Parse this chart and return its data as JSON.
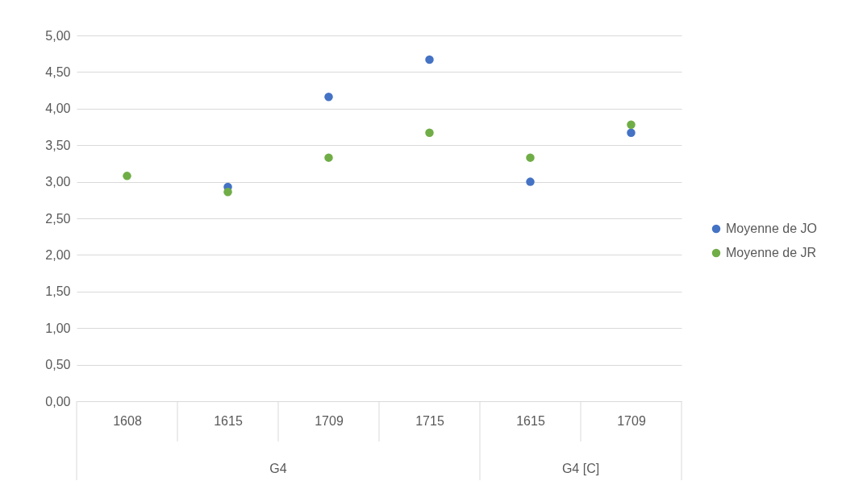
{
  "chart_data": {
    "type": "scatter",
    "categories": [
      "1608",
      "1615",
      "1709",
      "1715",
      "1615",
      "1709"
    ],
    "annotations": [
      "G4",
      "G4 [C]"
    ],
    "series": [
      {
        "name": "Moyenne de JO",
        "color": "#4472c4",
        "values": [
          null,
          2.93,
          4.16,
          4.67,
          3.0,
          3.67
        ]
      },
      {
        "name": "Moyenne de JR",
        "color": "#70ad47",
        "values": [
          3.08,
          2.86,
          3.33,
          3.67,
          3.33,
          3.78
        ]
      }
    ],
    "ylim": [
      0,
      5
    ],
    "yticks": [
      {
        "value": 0,
        "label": "0,00"
      },
      {
        "value": 0.5,
        "label": "0,50"
      },
      {
        "value": 1,
        "label": "1,00"
      },
      {
        "value": 1.5,
        "label": "1,50"
      },
      {
        "value": 2,
        "label": "2,00"
      },
      {
        "value": 2.5,
        "label": "2,50"
      },
      {
        "value": 3,
        "label": "3,00"
      },
      {
        "value": 3.5,
        "label": "3,50"
      },
      {
        "value": 4,
        "label": "4,00"
      },
      {
        "value": 4.5,
        "label": "4,50"
      },
      {
        "value": 5,
        "label": "5,00"
      }
    ],
    "grid": "y",
    "legend": "right",
    "marker": "circle"
  }
}
